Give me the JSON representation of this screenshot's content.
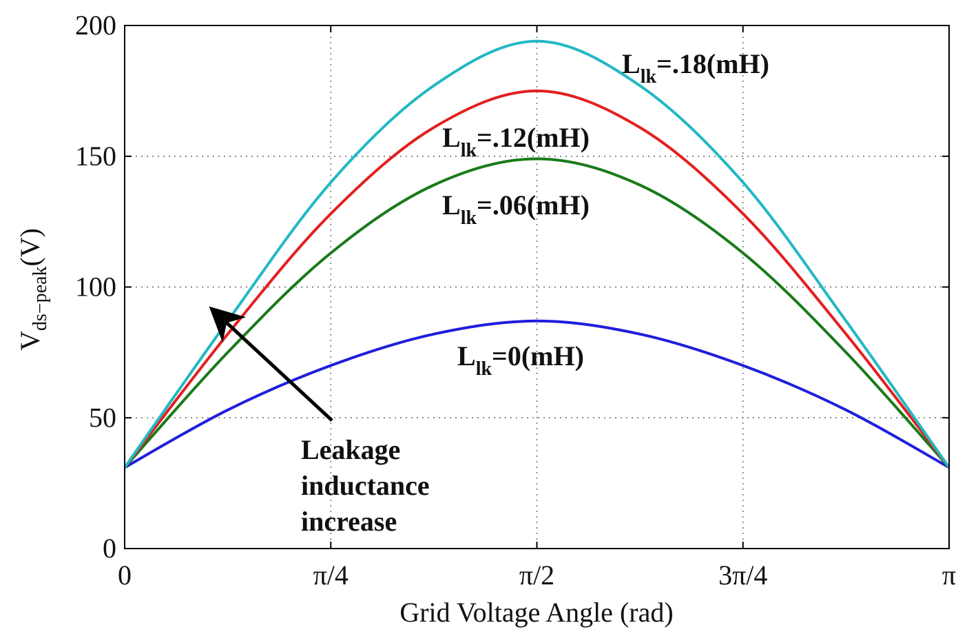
{
  "chart_data": {
    "type": "line",
    "xlabel": "Grid Voltage Angle (rad)",
    "ylabel": {
      "main": "V",
      "sub": "ds−peak",
      "tail": "(V)"
    },
    "xlim": [
      0,
      3.14159
    ],
    "ylim": [
      0,
      200
    ],
    "grid": true,
    "x_ticks": [
      {
        "value": 0,
        "label": "0"
      },
      {
        "value": 0.7854,
        "label": "π/4"
      },
      {
        "value": 1.5708,
        "label": "π/2"
      },
      {
        "value": 2.3562,
        "label": "3π/4"
      },
      {
        "value": 3.14159,
        "label": "π"
      }
    ],
    "y_ticks": [
      {
        "value": 0,
        "label": "0"
      },
      {
        "value": 50,
        "label": "50"
      },
      {
        "value": 100,
        "label": "100"
      },
      {
        "value": 150,
        "label": "150"
      },
      {
        "value": 200,
        "label": "200"
      }
    ],
    "x": [
      0,
      0.3927,
      0.7854,
      1.1781,
      1.5708,
      1.9635,
      2.3562,
      2.7489,
      3.14159
    ],
    "series": [
      {
        "name": "L_lk=0(mH)",
        "label_main": "L",
        "label_sub": "lk",
        "label_tail": "=0(mH)",
        "color": "#1f1fdc",
        "values": [
          31,
          53,
          70,
          82,
          87,
          82,
          70,
          53,
          31
        ]
      },
      {
        "name": "L_lk=.06(mH)",
        "label_main": "L",
        "label_sub": "lk",
        "label_tail": "=.06(mH)",
        "color": "#1a7a1a",
        "values": [
          31,
          75,
          113,
          139,
          149,
          139,
          113,
          75,
          31
        ]
      },
      {
        "name": "L_lk=.12(mH)",
        "label_main": "L",
        "label_sub": "lk",
        "label_tail": "=.12(mH)",
        "color": "#e41f1f",
        "values": [
          31,
          82,
          128,
          161,
          175,
          161,
          128,
          82,
          31
        ]
      },
      {
        "name": "L_lk=.18(mH)",
        "label_main": "L",
        "label_sub": "lk",
        "label_tail": "=.18(mH)",
        "color": "#22b8c4",
        "values": [
          31,
          87,
          140,
          177,
          194,
          177,
          140,
          87,
          31
        ]
      }
    ],
    "annotation": {
      "lines": [
        "Leakage",
        "inductance",
        "increase"
      ],
      "arrow_from": [
        0.79,
        49
      ],
      "arrow_to": [
        0.36,
        89
      ]
    }
  }
}
